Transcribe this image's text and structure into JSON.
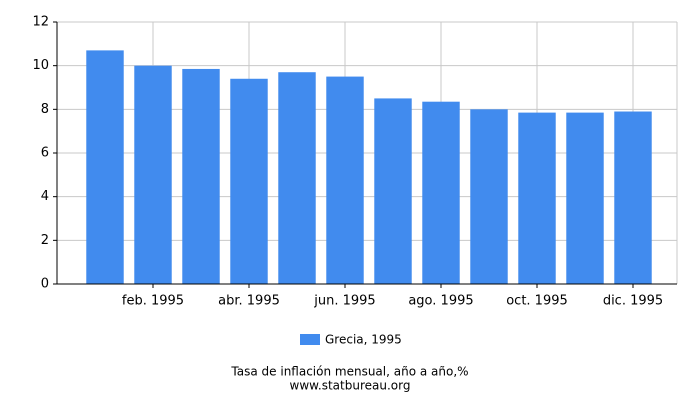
{
  "chart_data": {
    "type": "bar",
    "title": "Tasa de inflación mensual, año a año,%",
    "source": "www.statbureau.org",
    "categories": [
      null,
      "feb. 1995",
      null,
      "abr. 1995",
      null,
      "jun. 1995",
      null,
      "ago. 1995",
      null,
      "oct. 1995",
      null,
      "dic. 1995"
    ],
    "series": [
      {
        "name": "Grecia, 1995",
        "color": "#418bee",
        "values": [
          10.7,
          10.0,
          9.85,
          9.4,
          9.7,
          9.5,
          8.5,
          8.35,
          8.0,
          7.85,
          7.85,
          7.9
        ]
      }
    ],
    "ylim": [
      0,
      12
    ],
    "yticks": [
      0,
      2,
      4,
      6,
      8,
      10,
      12
    ],
    "grid": true
  }
}
